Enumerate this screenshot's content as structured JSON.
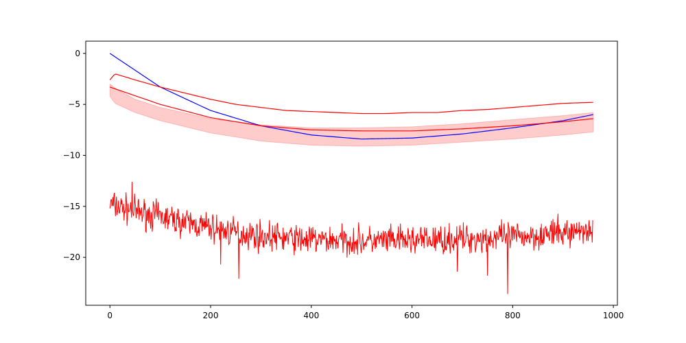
{
  "chart_data": {
    "type": "line",
    "title": "",
    "xlabel": "",
    "ylabel": "",
    "xlim": [
      -48,
      1008
    ],
    "ylim": [
      -24.7,
      1.2
    ],
    "grid": false,
    "legend": "none",
    "x_ticks": [
      0,
      200,
      400,
      600,
      800,
      1000
    ],
    "y_ticks": [
      0,
      -5,
      -10,
      -15,
      -20
    ],
    "x_tick_labels": [
      "0",
      "200",
      "400",
      "600",
      "800",
      "1000"
    ],
    "y_tick_labels": [
      "0",
      "−5",
      "−10",
      "−15",
      "−20"
    ],
    "colors": {
      "blue": "#0000ff",
      "red": "#ff0000",
      "band": "#ff0000"
    },
    "series": [
      {
        "kind": "line",
        "color": "#0000ff",
        "x": [
          0,
          100,
          200,
          300,
          400,
          500,
          600,
          700,
          800,
          900,
          960
        ],
        "y": [
          0.0,
          -3.3,
          -5.6,
          -7.1,
          -8.0,
          -8.4,
          -8.3,
          -7.9,
          -7.3,
          -6.6,
          -6.0
        ]
      },
      {
        "kind": "line",
        "color": "#ff0000",
        "x": [
          0,
          10,
          50,
          100,
          150,
          200,
          250,
          300,
          350,
          400,
          450,
          500,
          550,
          600,
          650,
          700,
          750,
          800,
          850,
          900,
          960
        ],
        "y": [
          -2.6,
          -2.0,
          -2.6,
          -3.3,
          -3.9,
          -4.5,
          -5.0,
          -5.3,
          -5.6,
          -5.7,
          -5.8,
          -5.9,
          -5.9,
          -5.8,
          -5.8,
          -5.6,
          -5.5,
          -5.3,
          -5.1,
          -4.9,
          -4.8
        ]
      },
      {
        "kind": "line",
        "color": "#ff0000",
        "x": [
          0,
          100,
          200,
          300,
          400,
          500,
          600,
          700,
          800,
          900,
          960
        ],
        "y": [
          -3.3,
          -5.0,
          -6.3,
          -7.1,
          -7.5,
          -7.6,
          -7.6,
          -7.4,
          -7.1,
          -6.7,
          -6.4
        ]
      },
      {
        "kind": "band",
        "color": "#ff0000",
        "alpha": 0.2,
        "x": [
          0,
          10,
          50,
          100,
          200,
          300,
          400,
          500,
          600,
          700,
          800,
          900,
          960
        ],
        "upper": [
          -3.0,
          -3.4,
          -4.5,
          -5.3,
          -6.4,
          -7.0,
          -7.3,
          -7.3,
          -7.2,
          -6.9,
          -6.5,
          -6.1,
          -5.8
        ],
        "lower": [
          -4.2,
          -4.9,
          -5.8,
          -6.6,
          -7.8,
          -8.6,
          -9.0,
          -9.1,
          -9.0,
          -8.7,
          -8.4,
          -8.0,
          -7.7
        ]
      },
      {
        "kind": "noisy-line",
        "color": "#ff0000",
        "x": [
          0,
          50,
          100,
          150,
          200,
          250,
          300,
          350,
          400,
          450,
          500,
          550,
          600,
          650,
          700,
          750,
          800,
          850,
          900,
          960
        ],
        "y": [
          -14.8,
          -15.5,
          -16.0,
          -16.6,
          -17.1,
          -17.6,
          -17.9,
          -18.1,
          -18.3,
          -18.3,
          -18.4,
          -18.4,
          -18.3,
          -18.3,
          -18.2,
          -18.1,
          -18.0,
          -17.8,
          -17.6,
          -17.2
        ],
        "noise_amplitude": 1.0,
        "n_points": 960,
        "spikes": [
          {
            "x": 44,
            "y": -12.6
          },
          {
            "x": 220,
            "y": -20.7
          },
          {
            "x": 256,
            "y": -22.1
          },
          {
            "x": 690,
            "y": -21.4
          },
          {
            "x": 750,
            "y": -21.8
          },
          {
            "x": 790,
            "y": -23.6
          }
        ]
      }
    ]
  }
}
